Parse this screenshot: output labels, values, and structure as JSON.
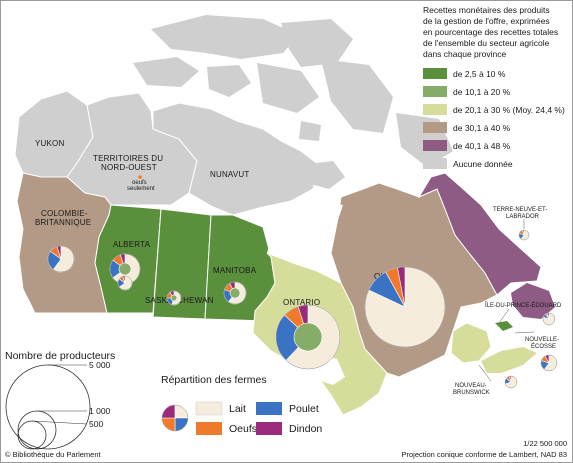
{
  "title_lines": [
    "Recettes monétaires des produits",
    "de la gestion de l'offre, exprimées",
    "en pourcentage des recettes totales",
    "de l'ensemble du secteur agricole",
    "dans chaque province"
  ],
  "share_legend": [
    {
      "label": "de 2,5 à 10 %",
      "color": "#5a8f3c"
    },
    {
      "label": "de 10,1 à 20 %",
      "color": "#86ad67"
    },
    {
      "label": "de 20,1 à 30 % (Moy. 24,4 %)",
      "color": "#d6dd9b"
    },
    {
      "label": "de 30,1 à 40 %",
      "color": "#b39a86"
    },
    {
      "label": "de 40,1 à 48 %",
      "color": "#8e5b84"
    },
    {
      "label": "Aucune donnée",
      "color": "#cfcfcf"
    }
  ],
  "provinces": {
    "yukon": "YUKON",
    "nwt_1": "TERRITOIRES DU",
    "nwt_2": "NORD-OUEST",
    "nwt_note_1": "oeufs",
    "nwt_note_2": "seulement",
    "nunavut": "NUNAVUT",
    "bc_1": "COLOMBIE-",
    "bc_2": "BRITANNIQUE",
    "alberta": "ALBERTA",
    "saskatchewan": "SASKATCHEWAN",
    "manitoba": "MANITOBA",
    "ontario": "ONTARIO",
    "quebec": "QUÉBEC",
    "nl_1": "TERRE-NEUVE-ET-",
    "nl_2": "LABRADOR",
    "pei": "ÎLE-DU-PRINCE-ÉDOUARD",
    "ns_1": "NOUVELLE-",
    "ns_2": "ÉCOSSE",
    "nb_1": "NOUVEAU-",
    "nb_2": "BRUNSWICK"
  },
  "producers_legend": {
    "title": "Nombre de producteurs",
    "values": [
      "5 000",
      "1 000",
      "500"
    ]
  },
  "farm_legend": {
    "title": "Répartition des fermes",
    "items": [
      {
        "label": "Lait",
        "color": "#f5ecdc"
      },
      {
        "label": "Poulet",
        "color": "#3a73c4"
      },
      {
        "label": "Oeufs",
        "color": "#f07a2c"
      },
      {
        "label": "Dindon",
        "color": "#9a2a7c"
      }
    ]
  },
  "colors": {
    "territories": "#cfcfcf",
    "water": "#ffffff",
    "dairy": "#f5ecdc",
    "chicken": "#3a73c4",
    "eggs": "#f07a2c",
    "turkey": "#9a2a7c",
    "donut_hole": "#86ad67"
  },
  "pies": [
    {
      "id": "bc",
      "shares": [
        60,
        25,
        10,
        5
      ]
    },
    {
      "id": "ab",
      "shares": [
        65,
        20,
        10,
        5
      ]
    },
    {
      "id": "sk",
      "shares": [
        55,
        20,
        15,
        10
      ]
    },
    {
      "id": "mb",
      "shares": [
        60,
        20,
        12,
        8
      ]
    },
    {
      "id": "on",
      "shares": [
        62,
        25,
        8,
        5
      ]
    },
    {
      "id": "qc",
      "shares": [
        82,
        10,
        5,
        3
      ]
    },
    {
      "id": "nb",
      "shares": [
        70,
        15,
        10,
        5
      ]
    },
    {
      "id": "ns",
      "shares": [
        60,
        20,
        12,
        8
      ]
    },
    {
      "id": "pei",
      "shares": [
        80,
        10,
        5,
        5
      ]
    },
    {
      "id": "nl",
      "shares": [
        60,
        20,
        15,
        5
      ]
    },
    {
      "id": "legend",
      "shares": [
        25,
        25,
        25,
        25
      ]
    }
  ],
  "scale": "1/22 500 000",
  "projection": "Projection conique conforme de Lambert, NAD 83",
  "copyright": "© Bibliothèque du Parlement"
}
